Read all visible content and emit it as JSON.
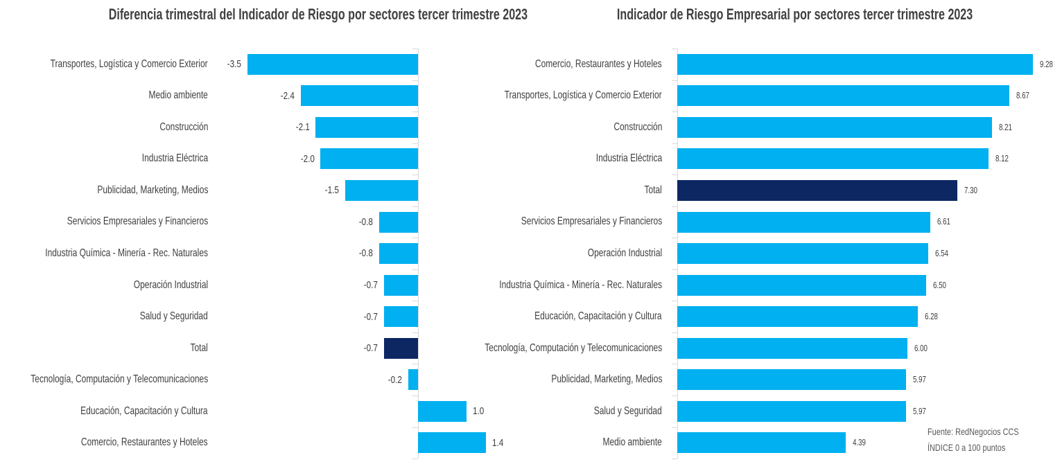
{
  "page": {
    "background": "#ffffff"
  },
  "footer": {
    "source": "Fuente: RedNegocios CCS",
    "note": "ÍNDICE 0 a 100  puntos"
  },
  "chart_data": [
    {
      "type": "bar",
      "orientation": "horizontal",
      "title": "Diferencia trimestral del Indicador de Riesgo por sectores tercer trimestre 2023",
      "categories": [
        "Transportes, Logística y Comercio Exterior",
        "Medio ambiente",
        "Construcción",
        "Industria Eléctrica",
        "Publicidad, Marketing, Medios",
        "Servicios Empresariales y Financieros",
        "Industria Química - Minería - Rec. Naturales",
        "Operación Industrial",
        "Salud y Seguridad",
        "Total",
        "Tecnología, Computación y Telecomunicaciones",
        "Educación, Capacitación y Cultura",
        "Comercio, Restaurantes y Hoteles"
      ],
      "values": [
        -3.5,
        -2.4,
        -2.1,
        -2.0,
        -1.5,
        -0.8,
        -0.8,
        -0.7,
        -0.7,
        -0.7,
        -0.2,
        1.0,
        1.4
      ],
      "value_labels": [
        "-3.5",
        "-2.4",
        "-2.1",
        "-2.0",
        "-1.5",
        "-0.8",
        "-0.8",
        "-0.7",
        "-0.7",
        "-0.7",
        "-0.2",
        "1.0",
        "1.4"
      ],
      "highlight_category": "Total",
      "bar_color": "#00B0F0",
      "highlight_color": "#0D2763",
      "axis_color": "#D9D9D9",
      "text_color": "#404040",
      "xlim": [
        -3.5,
        1.4
      ],
      "grid": false,
      "legend": false,
      "value_label_position": "outside-end"
    },
    {
      "type": "bar",
      "orientation": "horizontal",
      "title": "Indicador de Riesgo Empresarial por sectores tercer trimestre 2023",
      "categories": [
        "Comercio, Restaurantes y Hoteles",
        "Transportes, Logística y Comercio Exterior",
        "Construcción",
        "Industria Eléctrica",
        "Total",
        "Servicios Empresariales y Financieros",
        "Operación Industrial",
        "Industria Química - Minería - Rec. Naturales",
        "Educación, Capacitación y Cultura",
        "Tecnología, Computación y Telecomunicaciones",
        "Publicidad, Marketing, Medios",
        "Salud y Seguridad",
        "Medio ambiente"
      ],
      "values": [
        9.28,
        8.67,
        8.21,
        8.12,
        7.3,
        6.61,
        6.54,
        6.5,
        6.28,
        6.0,
        5.97,
        5.97,
        4.39
      ],
      "value_labels": [
        "9.28",
        "8.67",
        "8.21",
        "8.12",
        "7.30",
        "6.61",
        "6.54",
        "6.50",
        "6.28",
        "6.00",
        "5.97",
        "5.97",
        "4.39"
      ],
      "highlight_category": "Total",
      "bar_color": "#00B0F0",
      "highlight_color": "#0D2763",
      "axis_color": "#D9D9D9",
      "text_color": "#404040",
      "xlim": [
        0,
        9.28
      ],
      "grid": false,
      "legend": false,
      "value_label_position": "outside-end"
    }
  ]
}
